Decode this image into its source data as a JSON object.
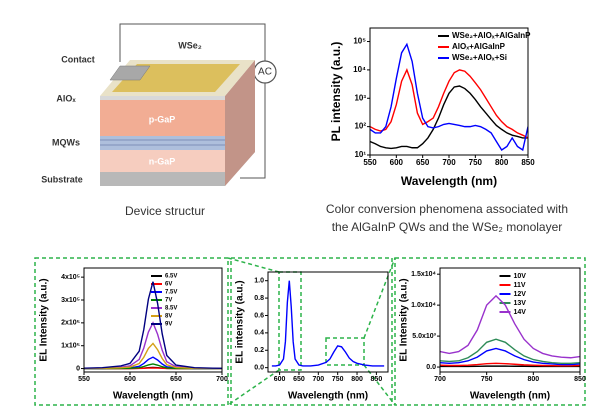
{
  "device": {
    "contact": "Contact",
    "wse2": "WSe₂",
    "ac": "AC",
    "alox": "AlOₓ",
    "mqws": "MQWs",
    "pgap": "p-GaP",
    "substrate": "Substrate",
    "ngap": "n-GaP"
  },
  "captions": [
    "Device structur",
    "Color conversion phenomena associated with",
    "the AlGaInP QWs and the WSe₂ monolayer"
  ],
  "chart_data": [
    {
      "type": "line",
      "xlabel": "Wavelength (nm)",
      "ylabel": "PL intensity (a.u.)",
      "log_y": true,
      "legend": "upper right",
      "xlim": [
        550,
        850
      ],
      "xticks": [
        550,
        600,
        650,
        700,
        750,
        800,
        850
      ],
      "ylim": [
        10,
        300000
      ],
      "yticks": [
        {
          "value": 10,
          "label": "10¹"
        },
        {
          "value": 100,
          "label": "10²"
        },
        {
          "value": 1000,
          "label": "10³"
        },
        {
          "value": 10000,
          "label": "10⁴"
        },
        {
          "value": 100000,
          "label": "10⁵"
        }
      ],
      "x": [
        550,
        560,
        570,
        580,
        590,
        600,
        610,
        620,
        630,
        640,
        650,
        660,
        670,
        680,
        690,
        700,
        710,
        720,
        730,
        740,
        750,
        760,
        770,
        780,
        790,
        800,
        810,
        820,
        830,
        840,
        850
      ],
      "series": [
        {
          "name": "WSe₂+AlOₓ+AlGaInP",
          "color": "#000000",
          "values": [
            30,
            25,
            20,
            18,
            17,
            18,
            20,
            20,
            18,
            18,
            25,
            40,
            80,
            200,
            600,
            1500,
            2500,
            2700,
            2200,
            1500,
            900,
            500,
            300,
            180,
            110,
            80,
            60,
            50,
            45,
            40,
            40
          ]
        },
        {
          "name": "AlOₓ+AlGaInP",
          "color": "#ff0000",
          "values": [
            100,
            80,
            70,
            80,
            150,
            600,
            4000,
            10000,
            3000,
            300,
            120,
            150,
            200,
            500,
            1500,
            4000,
            8000,
            10000,
            9000,
            6000,
            3500,
            2000,
            1000,
            500,
            250,
            150,
            100,
            80,
            60,
            50,
            40
          ]
        },
        {
          "name": "WSe₂+AlOₓ+Si",
          "color": "#0000ff",
          "values": [
            80,
            60,
            60,
            100,
            500,
            5000,
            40000,
            80000,
            20000,
            1500,
            200,
            100,
            90,
            100,
            120,
            130,
            120,
            110,
            100,
            100,
            110,
            100,
            80,
            60,
            30,
            15,
            20,
            40,
            20,
            15,
            100
          ]
        }
      ]
    },
    {
      "type": "line",
      "xlabel": "Wavelength (nm)",
      "ylabel": "EL Intensity (a.u.)",
      "legend": "upper right",
      "xlim": [
        550,
        700
      ],
      "xticks": [
        550,
        600,
        650,
        700
      ],
      "ylim": [
        -15000,
        440000
      ],
      "yticks": [
        0,
        {
          "value": 100000,
          "label": "1x10⁵"
        },
        {
          "value": 200000,
          "label": "2x10⁵"
        },
        {
          "value": 300000,
          "label": "3x10⁵"
        },
        {
          "value": 400000,
          "label": "4x10⁵"
        }
      ],
      "x": [
        550,
        570,
        590,
        600,
        610,
        615,
        620,
        625,
        630,
        635,
        640,
        650,
        670,
        690,
        700
      ],
      "series": [
        {
          "name": "6.5V",
          "color": "#000000",
          "values": [
            25,
            50,
            150,
            300,
            1000,
            2250,
            4000,
            5000,
            3750,
            2000,
            750,
            200,
            50,
            25,
            15
          ]
        },
        {
          "name": "6V",
          "color": "#ff0000",
          "values": [
            15,
            30,
            90,
            180,
            600,
            1350,
            2400,
            3000,
            2250,
            1200,
            450,
            120,
            30,
            15,
            9
          ]
        },
        {
          "name": "7.5V",
          "color": "#0000ff",
          "values": [
            250,
            500,
            1500,
            3000,
            10000,
            22500,
            40000,
            50000,
            37500,
            20000,
            7500,
            2000,
            500,
            250,
            150
          ]
        },
        {
          "name": "7V",
          "color": "#008000",
          "values": [
            100,
            200,
            600,
            1200,
            4000,
            9000,
            16000,
            20000,
            15000,
            8000,
            3000,
            800,
            200,
            100,
            60
          ]
        },
        {
          "name": "8.5V",
          "color": "#9932cc",
          "values": [
            1000,
            2000,
            6000,
            12000,
            40000,
            90000,
            160000,
            200000,
            150000,
            80000,
            30000,
            8000,
            2000,
            1000,
            600
          ]
        },
        {
          "name": "8V",
          "color": "#d4a017",
          "values": [
            550,
            1100,
            3300,
            6600,
            22000,
            49500,
            88000,
            110000,
            82500,
            44000,
            16500,
            4400,
            1100,
            550,
            330
          ]
        },
        {
          "name": "9V",
          "color": "#000080",
          "values": [
            1900,
            3800,
            11400,
            22800,
            76000,
            171000,
            304000,
            380000,
            285000,
            152000,
            57000,
            15200,
            3800,
            1900,
            1140
          ]
        }
      ]
    },
    {
      "type": "line",
      "xlabel": "Wavelength (nm)",
      "ylabel": "EL intensity (a.u.)",
      "xlim": [
        570,
        880
      ],
      "xticks": [
        600,
        650,
        700,
        750,
        800,
        850
      ],
      "ylim": [
        -0.05,
        1.1
      ],
      "yticks": [
        {
          "value": 0,
          "label": "0.0"
        },
        0.2,
        0.4,
        0.6,
        0.8,
        {
          "value": 1,
          "label": "1.0"
        }
      ],
      "x": [
        580,
        590,
        600,
        610,
        615,
        620,
        625,
        630,
        635,
        640,
        650,
        660,
        680,
        700,
        720,
        730,
        740,
        750,
        760,
        770,
        780,
        790,
        800,
        820,
        840,
        860,
        870
      ],
      "series": [
        {
          "color": "#0000ff",
          "values": [
            0.02,
            0.02,
            0.03,
            0.1,
            0.3,
            0.75,
            1.0,
            0.7,
            0.3,
            0.1,
            0.03,
            0.02,
            0.02,
            0.03,
            0.06,
            0.1,
            0.18,
            0.25,
            0.24,
            0.18,
            0.11,
            0.07,
            0.05,
            0.03,
            0.02,
            0.02,
            0.02
          ]
        }
      ]
    },
    {
      "type": "line",
      "xlabel": "Wavelength (nm)",
      "ylabel": "EL Intensity (a.u.)",
      "legend": "upper right",
      "xlim": [
        700,
        850
      ],
      "xticks": [
        700,
        750,
        800,
        850
      ],
      "ylim": [
        -800,
        16000
      ],
      "yticks": [
        {
          "value": 0,
          "label": "0.0"
        },
        {
          "value": 5000,
          "label": "5.0x10³"
        },
        {
          "value": 10000,
          "label": "1.0x10⁴"
        },
        {
          "value": 15000,
          "label": "1.5x10⁴"
        }
      ],
      "x": [
        700,
        710,
        720,
        730,
        740,
        750,
        760,
        770,
        780,
        790,
        800,
        810,
        820,
        830,
        840,
        850
      ],
      "series": [
        {
          "name": "10V",
          "color": "#000000",
          "values": [
            100,
            100,
            100,
            100,
            120,
            150,
            150,
            150,
            130,
            120,
            110,
            100,
            100,
            100,
            100,
            100
          ]
        },
        {
          "name": "11V",
          "color": "#ff0000",
          "values": [
            300,
            250,
            250,
            300,
            400,
            550,
            600,
            550,
            450,
            350,
            300,
            250,
            220,
            200,
            200,
            250
          ]
        },
        {
          "name": "12V",
          "color": "#0000ff",
          "values": [
            700,
            600,
            700,
            1000,
            1600,
            2600,
            3000,
            2600,
            1800,
            1200,
            800,
            600,
            500,
            400,
            400,
            500
          ]
        },
        {
          "name": "13V",
          "color": "#2e8b57",
          "values": [
            1000,
            900,
            1000,
            1500,
            2500,
            4000,
            4500,
            4000,
            2800,
            1800,
            1200,
            900,
            700,
            600,
            600,
            700
          ]
        },
        {
          "name": "14V",
          "color": "#9932cc",
          "values": [
            2500,
            2200,
            2500,
            3500,
            6000,
            10000,
            11500,
            10000,
            7000,
            4500,
            3000,
            2200,
            1800,
            1600,
            1500,
            1700
          ]
        }
      ]
    }
  ]
}
